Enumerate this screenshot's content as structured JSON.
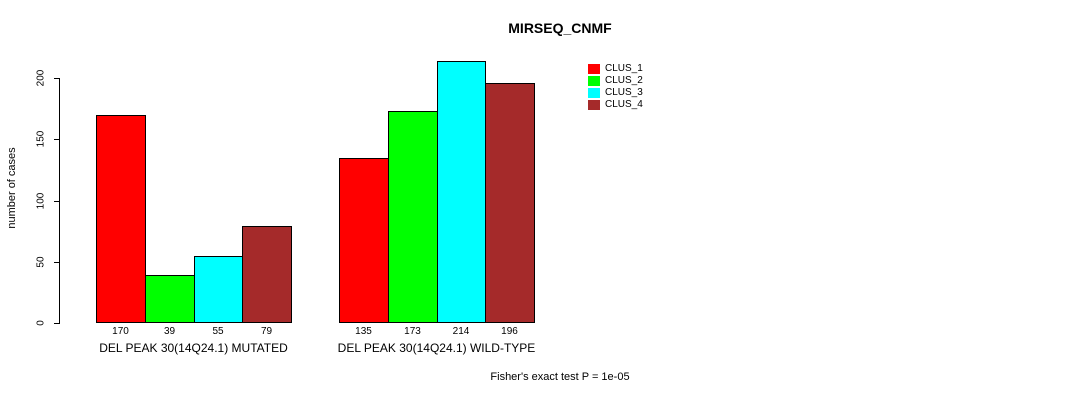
{
  "chart_data": {
    "type": "bar",
    "title": "MIRSEQ_CNMF",
    "ylabel": "number of cases",
    "xlabel": "",
    "annotation": "Fisher's exact test P = 1e-05",
    "ylim": [
      0,
      220
    ],
    "yticks": [
      0,
      50,
      100,
      150,
      200
    ],
    "grid": false,
    "legend_position": "right-of-plot-top",
    "categories": [
      "DEL PEAK 30(14Q24.1) MUTATED",
      "DEL PEAK 30(14Q24.1) WILD-TYPE"
    ],
    "series": [
      {
        "name": "CLUS_1",
        "color": "#FF0000",
        "values": [
          170,
          135
        ]
      },
      {
        "name": "CLUS_2",
        "color": "#00FF00",
        "values": [
          39,
          173
        ]
      },
      {
        "name": "CLUS_3",
        "color": "#00FFFF",
        "values": [
          55,
          214
        ]
      },
      {
        "name": "CLUS_4",
        "color": "#A52A2A",
        "values": [
          79,
          196
        ]
      }
    ],
    "bar_value_labels": [
      [
        "170",
        "39",
        "55",
        "79"
      ],
      [
        "135",
        "173",
        "214",
        "196"
      ]
    ]
  }
}
